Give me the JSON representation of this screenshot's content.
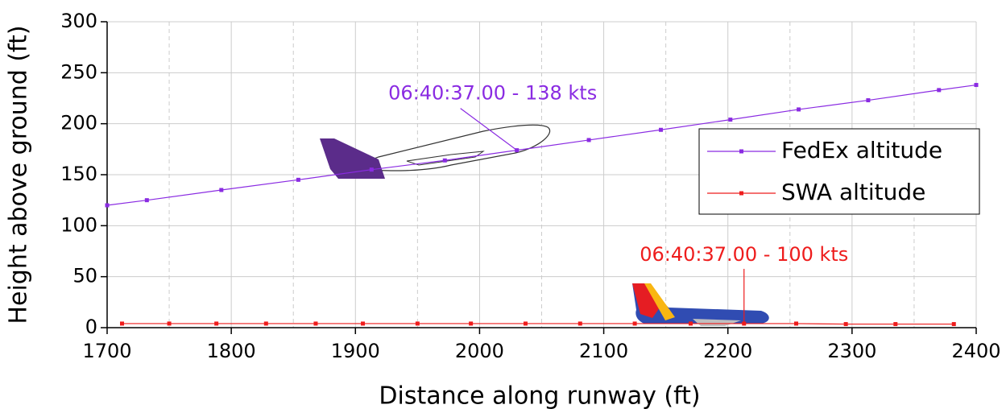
{
  "chart_data": {
    "type": "line",
    "xlabel": "Distance along runway (ft)",
    "ylabel": "Height above ground (ft)",
    "xlim": [
      1700,
      2400
    ],
    "xticks": [
      1700,
      1800,
      1900,
      2000,
      2100,
      2200,
      2300,
      2400
    ],
    "ylim": [
      0,
      300
    ],
    "yticks": [
      0,
      50,
      100,
      150,
      200,
      250,
      300
    ],
    "grid": true,
    "legend": "upper right",
    "series": [
      {
        "name": "FedEx altitude",
        "color": "#8a2be2",
        "x": [
          1700,
          1732,
          1792,
          1854,
          1913,
          1972,
          2030,
          2088,
          2146,
          2202,
          2257,
          2313,
          2370,
          2400
        ],
        "values": [
          120,
          125,
          135,
          145,
          155,
          164,
          174,
          184,
          194,
          204,
          214,
          223,
          233,
          238
        ]
      },
      {
        "name": "SWA altitude",
        "color": "#ee1c1c",
        "x": [
          1712,
          1750,
          1788,
          1828,
          1868,
          1906,
          1950,
          1993,
          2037,
          2081,
          2125,
          2170,
          2213,
          2255,
          2295,
          2335,
          2382
        ],
        "values": [
          4,
          4,
          4,
          4,
          4,
          4,
          4,
          4,
          4,
          4,
          4,
          4,
          4,
          4,
          3.5,
          3.5,
          3.5
        ]
      }
    ],
    "annotations": [
      {
        "text": "06:40:37.00 - 138 kts",
        "color": "#8a2be2",
        "x": 2030,
        "y": 174
      },
      {
        "text": "06:40:37.00 - 100 kts",
        "color": "#ee1c1c",
        "x": 2213,
        "y": 4
      }
    ]
  }
}
